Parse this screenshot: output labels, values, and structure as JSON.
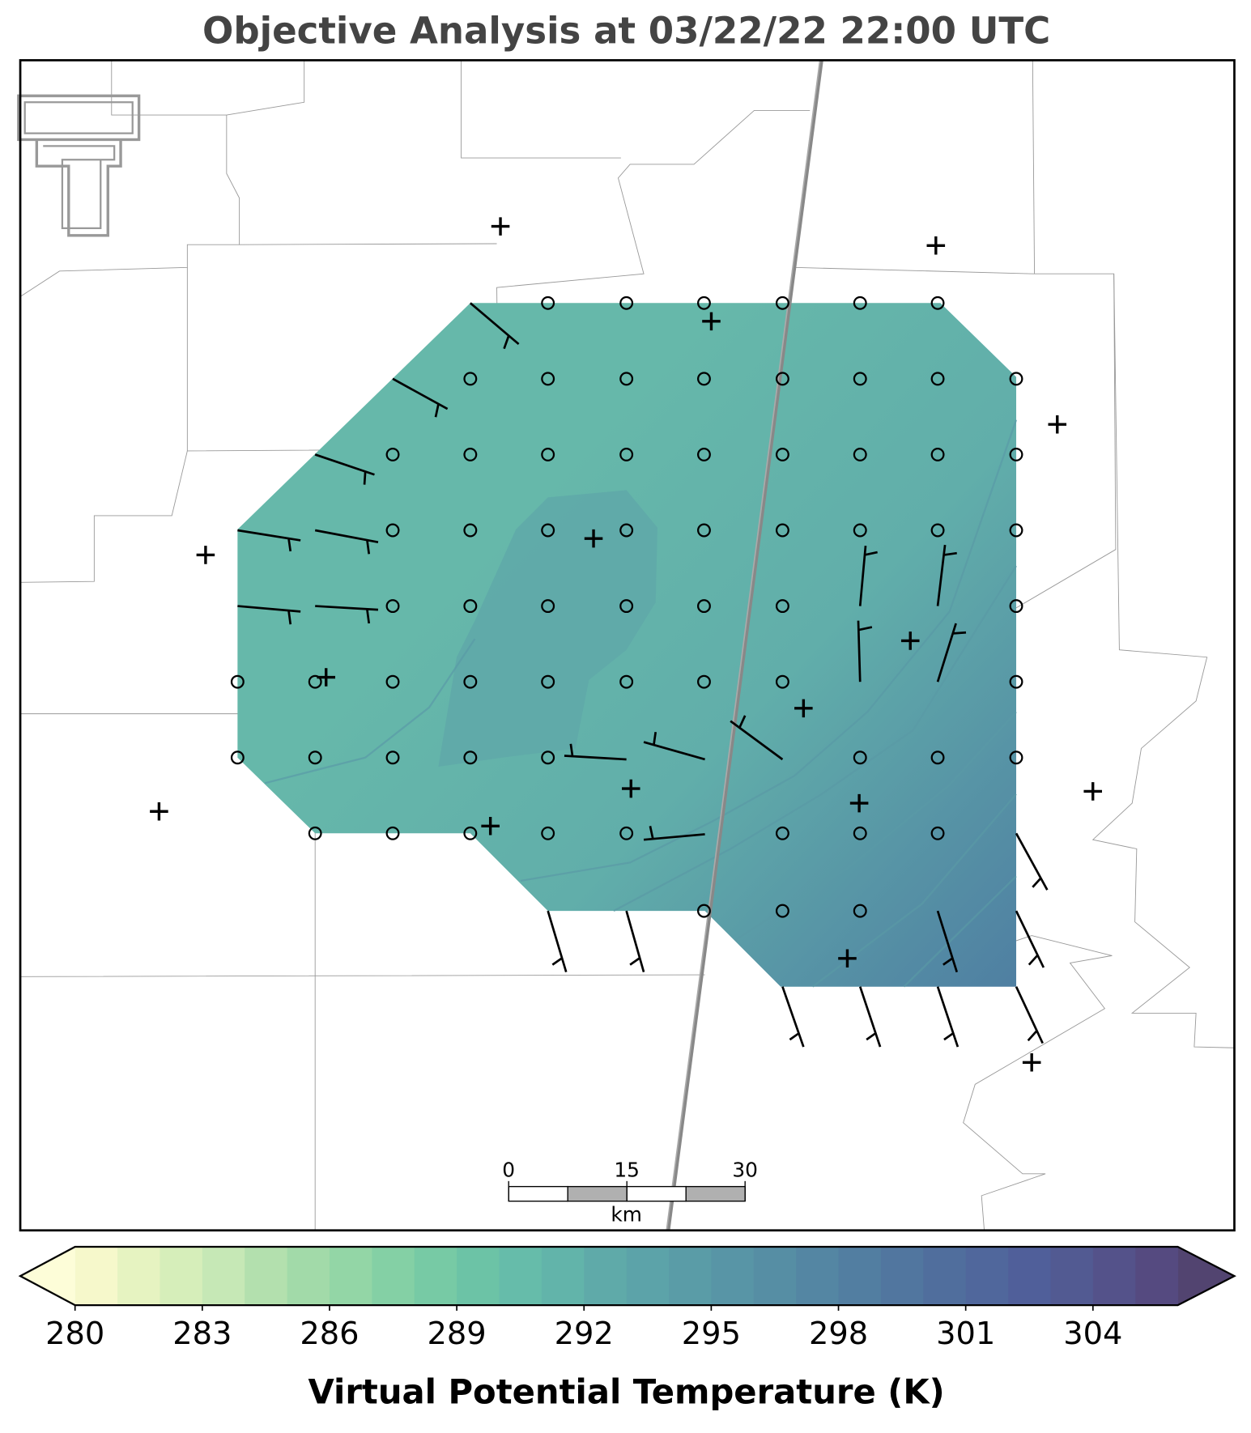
{
  "title": "Objective Analysis at 03/22/22 22:00 UTC",
  "colorbar": {
    "label": "Virtual Potential Temperature (K)",
    "levels": [
      280,
      281,
      282,
      283,
      284,
      285,
      286,
      287,
      288,
      289,
      290,
      291,
      292,
      293,
      294,
      295,
      296,
      297,
      298,
      299,
      300,
      301,
      302,
      303,
      304,
      305,
      306
    ],
    "ticks": [
      280,
      283,
      286,
      289,
      292,
      295,
      298,
      301,
      304
    ],
    "colors": [
      "#f6f8cb",
      "#e6f3c1",
      "#d6eeba",
      "#c6e8b6",
      "#b3e0ae",
      "#a2daa9",
      "#93d6a6",
      "#84d0a5",
      "#77caa5",
      "#6cc3a6",
      "#66bcaa",
      "#62b4aa",
      "#5faaa9",
      "#5ca3a9",
      "#5a9ca7",
      "#5895a6",
      "#568ea4",
      "#5486a3",
      "#527ea1",
      "#51769f",
      "#506e9d",
      "#50679c",
      "#505f9a",
      "#525a92",
      "#54528a",
      "#554a80"
    ],
    "under_color": "#fdfdd8",
    "over_color": "#524470"
  },
  "scale_bar": {
    "ticks": [
      0,
      15,
      30
    ],
    "unit": "km"
  }
}
